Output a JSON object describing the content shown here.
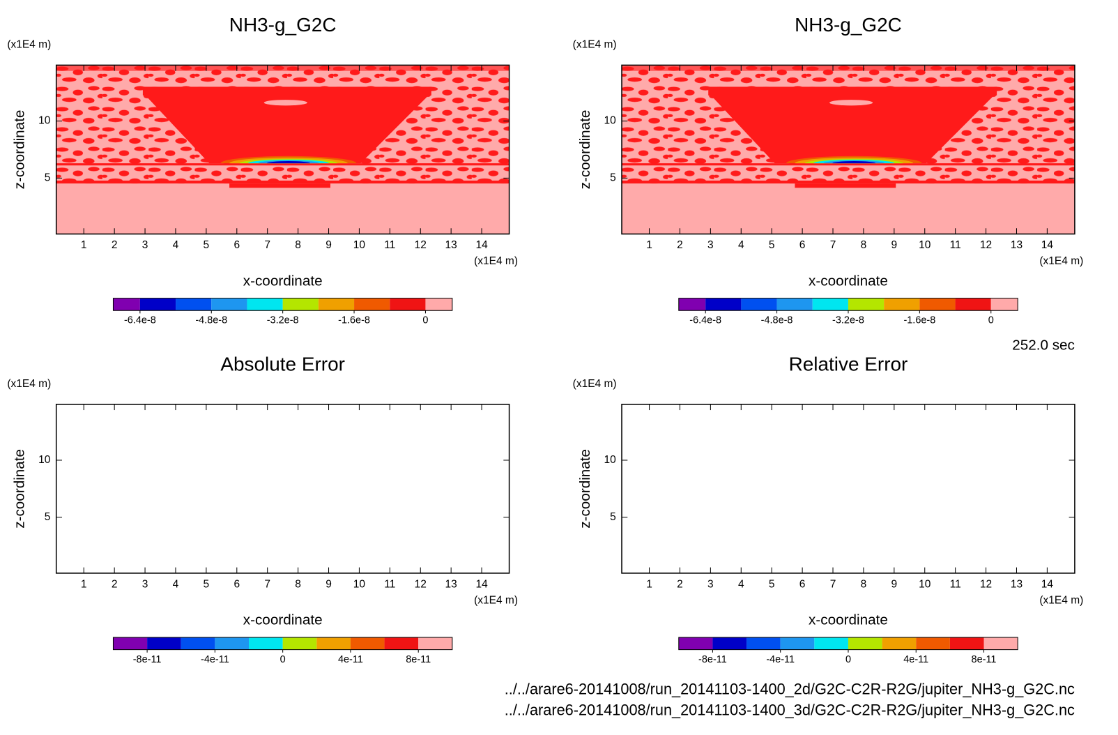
{
  "chart_data": [
    {
      "type": "contour",
      "title": "NH3-g_G2C",
      "y_unit_label": "(x1E4 m)",
      "x_unit_label": "(x1E4 m)",
      "xlabel": "x-coordinate",
      "ylabel": "z-coordinate",
      "xlim": [
        0.1,
        14.9
      ],
      "ylim": [
        0.1,
        14.9
      ],
      "xticks": [
        1,
        2,
        3,
        4,
        5,
        6,
        7,
        8,
        9,
        10,
        11,
        12,
        13,
        14
      ],
      "yticks": [
        5,
        10
      ],
      "colorbar": {
        "colors": [
          "#8000b0",
          "#0000c8",
          "#0050f0",
          "#1e96f0",
          "#00e6f0",
          "#b4e600",
          "#f0a000",
          "#f05a00",
          "#f01414",
          "#ffaaaa"
        ],
        "bounds": [
          -7e-08,
          -6.4e-08,
          -5.6e-08,
          -4.8e-08,
          -4e-08,
          -3.2e-08,
          -2.4e-08,
          -1.6e-08,
          -8e-09,
          0,
          6e-09
        ],
        "ticks": [
          -6.4e-08,
          -4.8e-08,
          -3.2e-08,
          -1.6e-08,
          0
        ]
      }
    },
    {
      "type": "contour",
      "title": "NH3-g_G2C",
      "y_unit_label": "(x1E4 m)",
      "x_unit_label": "(x1E4 m)",
      "xlabel": "x-coordinate",
      "ylabel": "z-coordinate",
      "xlim": [
        0.1,
        14.9
      ],
      "ylim": [
        0.1,
        14.9
      ],
      "xticks": [
        1,
        2,
        3,
        4,
        5,
        6,
        7,
        8,
        9,
        10,
        11,
        12,
        13,
        14
      ],
      "yticks": [
        5,
        10
      ],
      "colorbar": {
        "colors": [
          "#8000b0",
          "#0000c8",
          "#0050f0",
          "#1e96f0",
          "#00e6f0",
          "#b4e600",
          "#f0a000",
          "#f05a00",
          "#f01414",
          "#ffaaaa"
        ],
        "bounds": [
          -7e-08,
          -6.4e-08,
          -5.6e-08,
          -4.8e-08,
          -4e-08,
          -3.2e-08,
          -2.4e-08,
          -1.6e-08,
          -8e-09,
          0,
          6e-09
        ],
        "ticks": [
          -6.4e-08,
          -4.8e-08,
          -3.2e-08,
          -1.6e-08,
          0
        ]
      }
    },
    {
      "type": "contour",
      "title": "Absolute Error",
      "y_unit_label": "(x1E4 m)",
      "x_unit_label": "(x1E4 m)",
      "xlabel": "x-coordinate",
      "ylabel": "z-coordinate",
      "xlim": [
        0.1,
        14.9
      ],
      "ylim": [
        0.1,
        14.9
      ],
      "xticks": [
        1,
        2,
        3,
        4,
        5,
        6,
        7,
        8,
        9,
        10,
        11,
        12,
        13,
        14
      ],
      "yticks": [
        5,
        10
      ],
      "colorbar": {
        "colors": [
          "#8000b0",
          "#0000c8",
          "#0050f0",
          "#1e96f0",
          "#00e6f0",
          "#b4e600",
          "#f0a000",
          "#f05a00",
          "#f01414",
          "#ffaaaa"
        ],
        "bounds": [
          -1e-10,
          -8e-11,
          -6e-11,
          -4e-11,
          -2e-11,
          0,
          2e-11,
          4e-11,
          6e-11,
          8e-11,
          1e-10
        ],
        "ticks": [
          -8e-11,
          -4e-11,
          0,
          4e-11,
          8e-11
        ]
      }
    },
    {
      "type": "contour",
      "title": "Relative Error",
      "y_unit_label": "(x1E4 m)",
      "x_unit_label": "(x1E4 m)",
      "xlabel": "x-coordinate",
      "ylabel": "z-coordinate",
      "xlim": [
        0.1,
        14.9
      ],
      "ylim": [
        0.1,
        14.9
      ],
      "xticks": [
        1,
        2,
        3,
        4,
        5,
        6,
        7,
        8,
        9,
        10,
        11,
        12,
        13,
        14
      ],
      "yticks": [
        5,
        10
      ],
      "colorbar": {
        "colors": [
          "#8000b0",
          "#0000c8",
          "#0050f0",
          "#1e96f0",
          "#00e6f0",
          "#b4e600",
          "#f0a000",
          "#f05a00",
          "#f01414",
          "#ffaaaa"
        ],
        "bounds": [
          -1e-10,
          -8e-11,
          -6e-11,
          -4e-11,
          -2e-11,
          0,
          2e-11,
          4e-11,
          6e-11,
          8e-11,
          1e-10
        ],
        "ticks": [
          -8e-11,
          -4e-11,
          0,
          4e-11,
          8e-11
        ]
      }
    }
  ],
  "time_label": "252.0 sec",
  "file_paths": [
    "../../arare6-20141008/run_20141103-1400_2d/G2C-C2R-R2G/jupiter_NH3-g_G2C.nc",
    "../../arare6-20141008/run_20141103-1400_3d/G2C-C2R-R2G/jupiter_NH3-g_G2C.nc"
  ]
}
